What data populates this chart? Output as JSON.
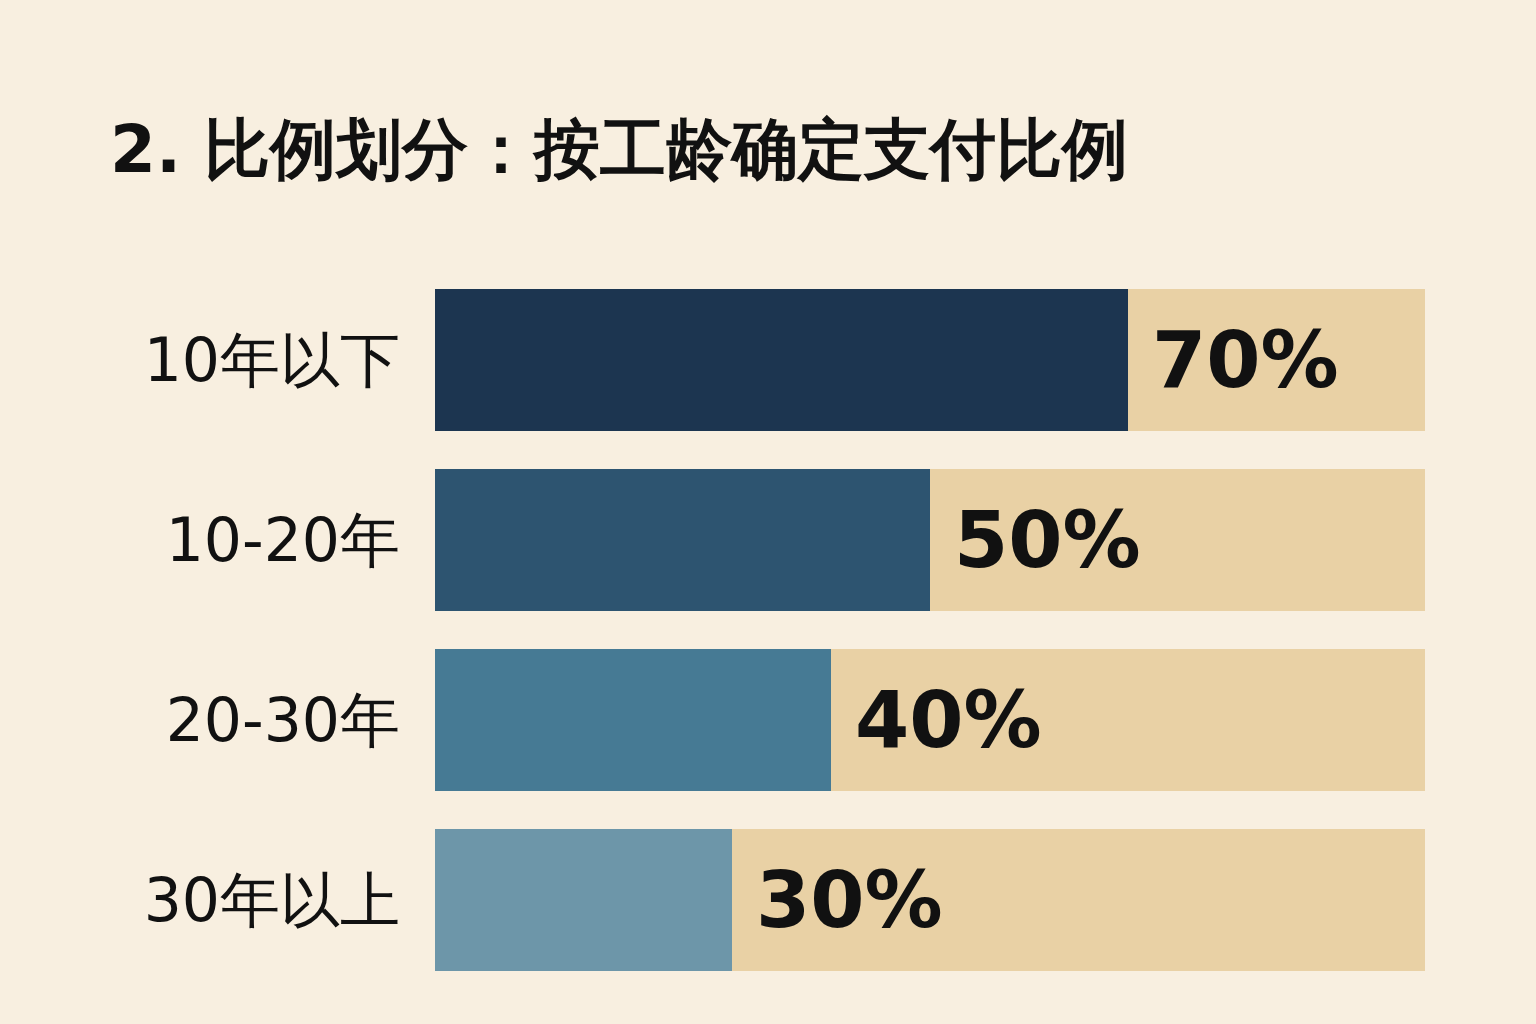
{
  "chart_data": {
    "type": "bar",
    "title": "2. 比例划分：按工龄确定支付比例",
    "orientation": "horizontal",
    "stacked": true,
    "categories": [
      "10年以下",
      "10-20年",
      "20-30年",
      "30年以上"
    ],
    "series": [
      {
        "colors": [
          "#1c3550",
          "#2d5470",
          "#467a94",
          "#6d96a9"
        ],
        "values": [
          70,
          50,
          40,
          30
        ],
        "value_labels": [
          "70%",
          "50%",
          "40%",
          "30%"
        ]
      },
      {
        "color": "#e9d1a5",
        "values": [
          30,
          50,
          60,
          70
        ]
      }
    ]
  }
}
